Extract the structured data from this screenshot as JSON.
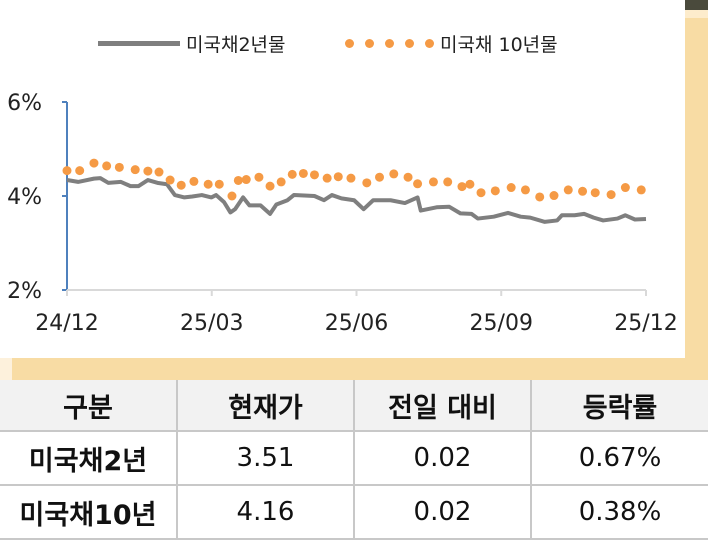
{
  "chart_data": {
    "type": "line",
    "legend_placement": "top",
    "xlabel": "",
    "ylabel": "",
    "x_ticks": [
      "24/12",
      "25/03",
      "25/06",
      "25/09",
      "25/12"
    ],
    "y_ticks": [
      "2%",
      "4%",
      "6%"
    ],
    "ylim": [
      2,
      6
    ],
    "xlim": [
      "2024-12-01",
      "2025-12-01"
    ],
    "grid": false,
    "series": [
      {
        "name": "미국채2년물",
        "style": "line",
        "color": "#7f7f7f",
        "points": [
          [
            "2024-12-01",
            4.34
          ],
          [
            "2024-12-08",
            4.3
          ],
          [
            "2024-12-18",
            4.37
          ],
          [
            "2024-12-22",
            4.38
          ],
          [
            "2024-12-27",
            4.28
          ],
          [
            "2025-01-04",
            4.3
          ],
          [
            "2025-01-10",
            4.21
          ],
          [
            "2025-01-15",
            4.21
          ],
          [
            "2025-01-21",
            4.34
          ],
          [
            "2025-01-27",
            4.28
          ],
          [
            "2025-02-02",
            4.25
          ],
          [
            "2025-02-07",
            4.02
          ],
          [
            "2025-02-13",
            3.97
          ],
          [
            "2025-02-18",
            3.99
          ],
          [
            "2025-02-24",
            4.02
          ],
          [
            "2025-03-02",
            3.97
          ],
          [
            "2025-03-05",
            4.02
          ],
          [
            "2025-03-10",
            3.87
          ],
          [
            "2025-03-14",
            3.65
          ],
          [
            "2025-03-17",
            3.72
          ],
          [
            "2025-03-22",
            3.97
          ],
          [
            "2025-03-26",
            3.8
          ],
          [
            "2025-04-02",
            3.8
          ],
          [
            "2025-04-08",
            3.62
          ],
          [
            "2025-04-12",
            3.82
          ],
          [
            "2025-04-19",
            3.91
          ],
          [
            "2025-04-23",
            4.02
          ],
          [
            "2025-05-06",
            4.0
          ],
          [
            "2025-05-12",
            3.91
          ],
          [
            "2025-05-17",
            4.02
          ],
          [
            "2025-05-23",
            3.95
          ],
          [
            "2025-05-31",
            3.91
          ],
          [
            "2025-06-06",
            3.72
          ],
          [
            "2025-06-12",
            3.91
          ],
          [
            "2025-06-23",
            3.91
          ],
          [
            "2025-07-02",
            3.85
          ],
          [
            "2025-07-10",
            3.97
          ],
          [
            "2025-07-12",
            3.69
          ],
          [
            "2025-07-22",
            3.76
          ],
          [
            "2025-07-30",
            3.77
          ],
          [
            "2025-08-06",
            3.63
          ],
          [
            "2025-08-13",
            3.62
          ],
          [
            "2025-08-17",
            3.52
          ],
          [
            "2025-08-27",
            3.56
          ],
          [
            "2025-09-05",
            3.64
          ],
          [
            "2025-09-13",
            3.56
          ],
          [
            "2025-09-19",
            3.54
          ],
          [
            "2025-09-28",
            3.45
          ],
          [
            "2025-10-06",
            3.48
          ],
          [
            "2025-10-09",
            3.59
          ],
          [
            "2025-10-17",
            3.59
          ],
          [
            "2025-10-23",
            3.62
          ],
          [
            "2025-10-29",
            3.54
          ],
          [
            "2025-11-04",
            3.48
          ],
          [
            "2025-11-13",
            3.52
          ],
          [
            "2025-11-18",
            3.59
          ],
          [
            "2025-11-24",
            3.5
          ],
          [
            "2025-12-01",
            3.51
          ]
        ]
      },
      {
        "name": "미국채 10년물",
        "style": "dots",
        "color": "#f59a45",
        "points": [
          [
            "2024-12-01",
            4.54
          ],
          [
            "2024-12-09",
            4.54
          ],
          [
            "2024-12-18",
            4.7
          ],
          [
            "2024-12-26",
            4.64
          ],
          [
            "2025-01-03",
            4.61
          ],
          [
            "2025-01-13",
            4.56
          ],
          [
            "2025-01-21",
            4.53
          ],
          [
            "2025-01-28",
            4.51
          ],
          [
            "2025-02-04",
            4.34
          ],
          [
            "2025-02-11",
            4.23
          ],
          [
            "2025-02-19",
            4.31
          ],
          [
            "2025-02-28",
            4.25
          ],
          [
            "2025-03-07",
            4.25
          ],
          [
            "2025-03-15",
            4.0
          ],
          [
            "2025-03-19",
            4.33
          ],
          [
            "2025-03-24",
            4.35
          ],
          [
            "2025-04-01",
            4.4
          ],
          [
            "2025-04-08",
            4.21
          ],
          [
            "2025-04-15",
            4.3
          ],
          [
            "2025-04-22",
            4.46
          ],
          [
            "2025-04-29",
            4.48
          ],
          [
            "2025-05-06",
            4.45
          ],
          [
            "2025-05-14",
            4.38
          ],
          [
            "2025-05-21",
            4.41
          ],
          [
            "2025-05-29",
            4.38
          ],
          [
            "2025-06-08",
            4.28
          ],
          [
            "2025-06-16",
            4.4
          ],
          [
            "2025-06-25",
            4.47
          ],
          [
            "2025-07-04",
            4.4
          ],
          [
            "2025-07-10",
            4.26
          ],
          [
            "2025-07-20",
            4.3
          ],
          [
            "2025-07-29",
            4.3
          ],
          [
            "2025-08-07",
            4.2
          ],
          [
            "2025-08-12",
            4.25
          ],
          [
            "2025-08-19",
            4.07
          ],
          [
            "2025-08-28",
            4.11
          ],
          [
            "2025-09-07",
            4.18
          ],
          [
            "2025-09-16",
            4.13
          ],
          [
            "2025-09-25",
            3.98
          ],
          [
            "2025-10-04",
            4.01
          ],
          [
            "2025-10-13",
            4.13
          ],
          [
            "2025-10-22",
            4.1
          ],
          [
            "2025-10-30",
            4.07
          ],
          [
            "2025-11-09",
            4.03
          ],
          [
            "2025-11-18",
            4.18
          ],
          [
            "2025-11-28",
            4.13
          ]
        ]
      }
    ]
  },
  "table": {
    "headers": [
      "구분",
      "현재가",
      "전일 대비",
      "등락률"
    ],
    "rows": [
      [
        "미국채2년",
        "3.51",
        "0.02",
        "0.67%"
      ],
      [
        "미국채10년",
        "4.16",
        "0.02",
        "0.38%"
      ]
    ]
  },
  "colors": {
    "border_accent": "#f8dca4",
    "axis": "#4f81bd"
  }
}
